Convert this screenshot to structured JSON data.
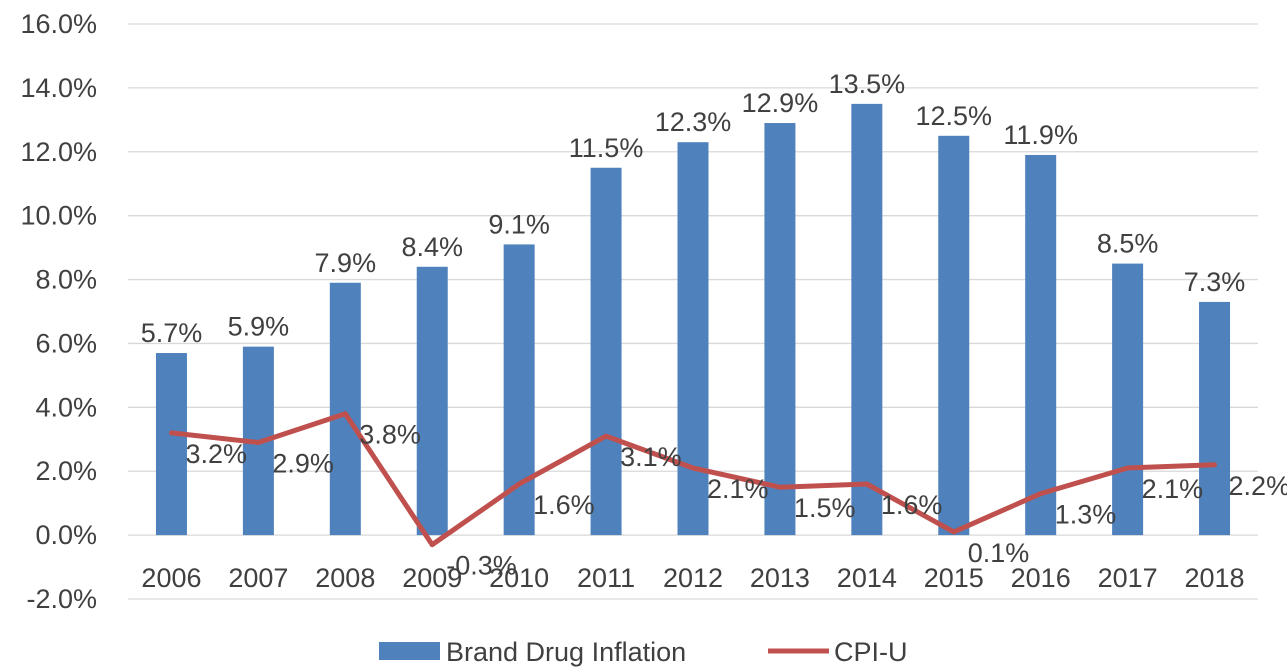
{
  "chart_data": {
    "type": "bar",
    "categories": [
      "2006",
      "2007",
      "2008",
      "2009",
      "2010",
      "2011",
      "2012",
      "2013",
      "2014",
      "2015",
      "2016",
      "2017",
      "2018"
    ],
    "series": [
      {
        "name": "Brand Drug Inflation",
        "type": "bar",
        "values": [
          5.7,
          5.9,
          7.9,
          8.4,
          9.1,
          11.5,
          12.3,
          12.9,
          13.5,
          12.5,
          11.9,
          8.5,
          7.3
        ],
        "labels": [
          "5.7%",
          "5.9%",
          "7.9%",
          "8.4%",
          "9.1%",
          "11.5%",
          "12.3%",
          "12.9%",
          "13.5%",
          "12.5%",
          "11.9%",
          "8.5%",
          "7.3%"
        ],
        "color": "#4f81bd"
      },
      {
        "name": "CPI-U",
        "type": "line",
        "values": [
          3.2,
          2.9,
          3.8,
          -0.3,
          1.6,
          3.1,
          2.1,
          1.5,
          1.6,
          0.1,
          1.3,
          2.1,
          2.2
        ],
        "labels": [
          "3.2%",
          "2.9%",
          "3.8%",
          "-0.3%",
          "1.6%",
          "3.1%",
          "2.1%",
          "1.5%",
          "1.6%",
          "0.1%",
          "1.3%",
          "2.1%",
          "2.2%"
        ],
        "color": "#c0504d"
      }
    ],
    "y_ticks": [
      "16.0%",
      "14.0%",
      "12.0%",
      "10.0%",
      "8.0%",
      "6.0%",
      "4.0%",
      "2.0%",
      "0.0%",
      "-2.0%"
    ],
    "ylim": [
      -2,
      16
    ],
    "grid": true,
    "legend_position": "bottom",
    "title": "",
    "xlabel": "",
    "ylabel": ""
  }
}
